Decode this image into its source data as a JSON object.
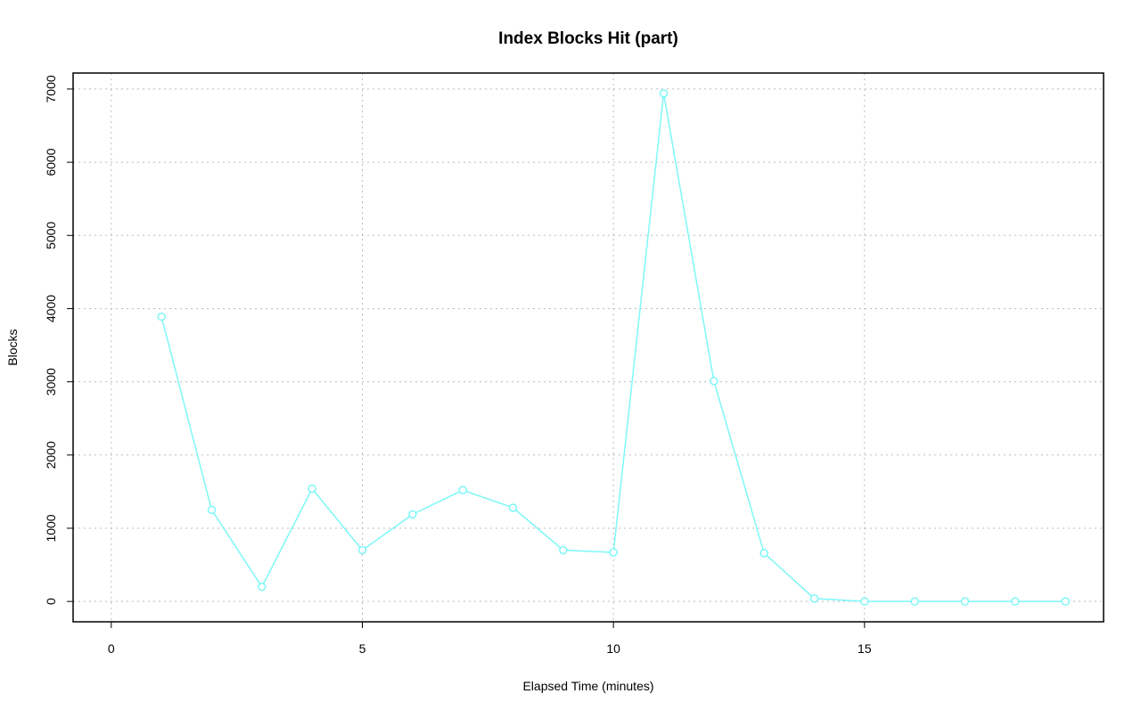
{
  "chart_data": {
    "type": "line",
    "title": "Index Blocks Hit (part)",
    "xlabel": "Elapsed Time (minutes)",
    "ylabel": "Blocks",
    "x": [
      1,
      2,
      3,
      4,
      5,
      6,
      7,
      8,
      9,
      10,
      11,
      12,
      13,
      14,
      15,
      16,
      17,
      18,
      19
    ],
    "series": [
      {
        "name": "Index Blocks Hit",
        "color": "#7ff7f7",
        "values": [
          3890,
          1250,
          200,
          1540,
          700,
          1190,
          1520,
          1280,
          700,
          670,
          6940,
          3010,
          660,
          40,
          0,
          0,
          0,
          0,
          0
        ]
      }
    ],
    "xlim": [
      -0.76,
      19.76
    ],
    "ylim": [
      -278,
      7218
    ],
    "xticks": [
      0,
      5,
      10,
      15
    ],
    "yticks": [
      0,
      1000,
      2000,
      3000,
      4000,
      5000,
      6000,
      7000
    ],
    "grid": true
  }
}
